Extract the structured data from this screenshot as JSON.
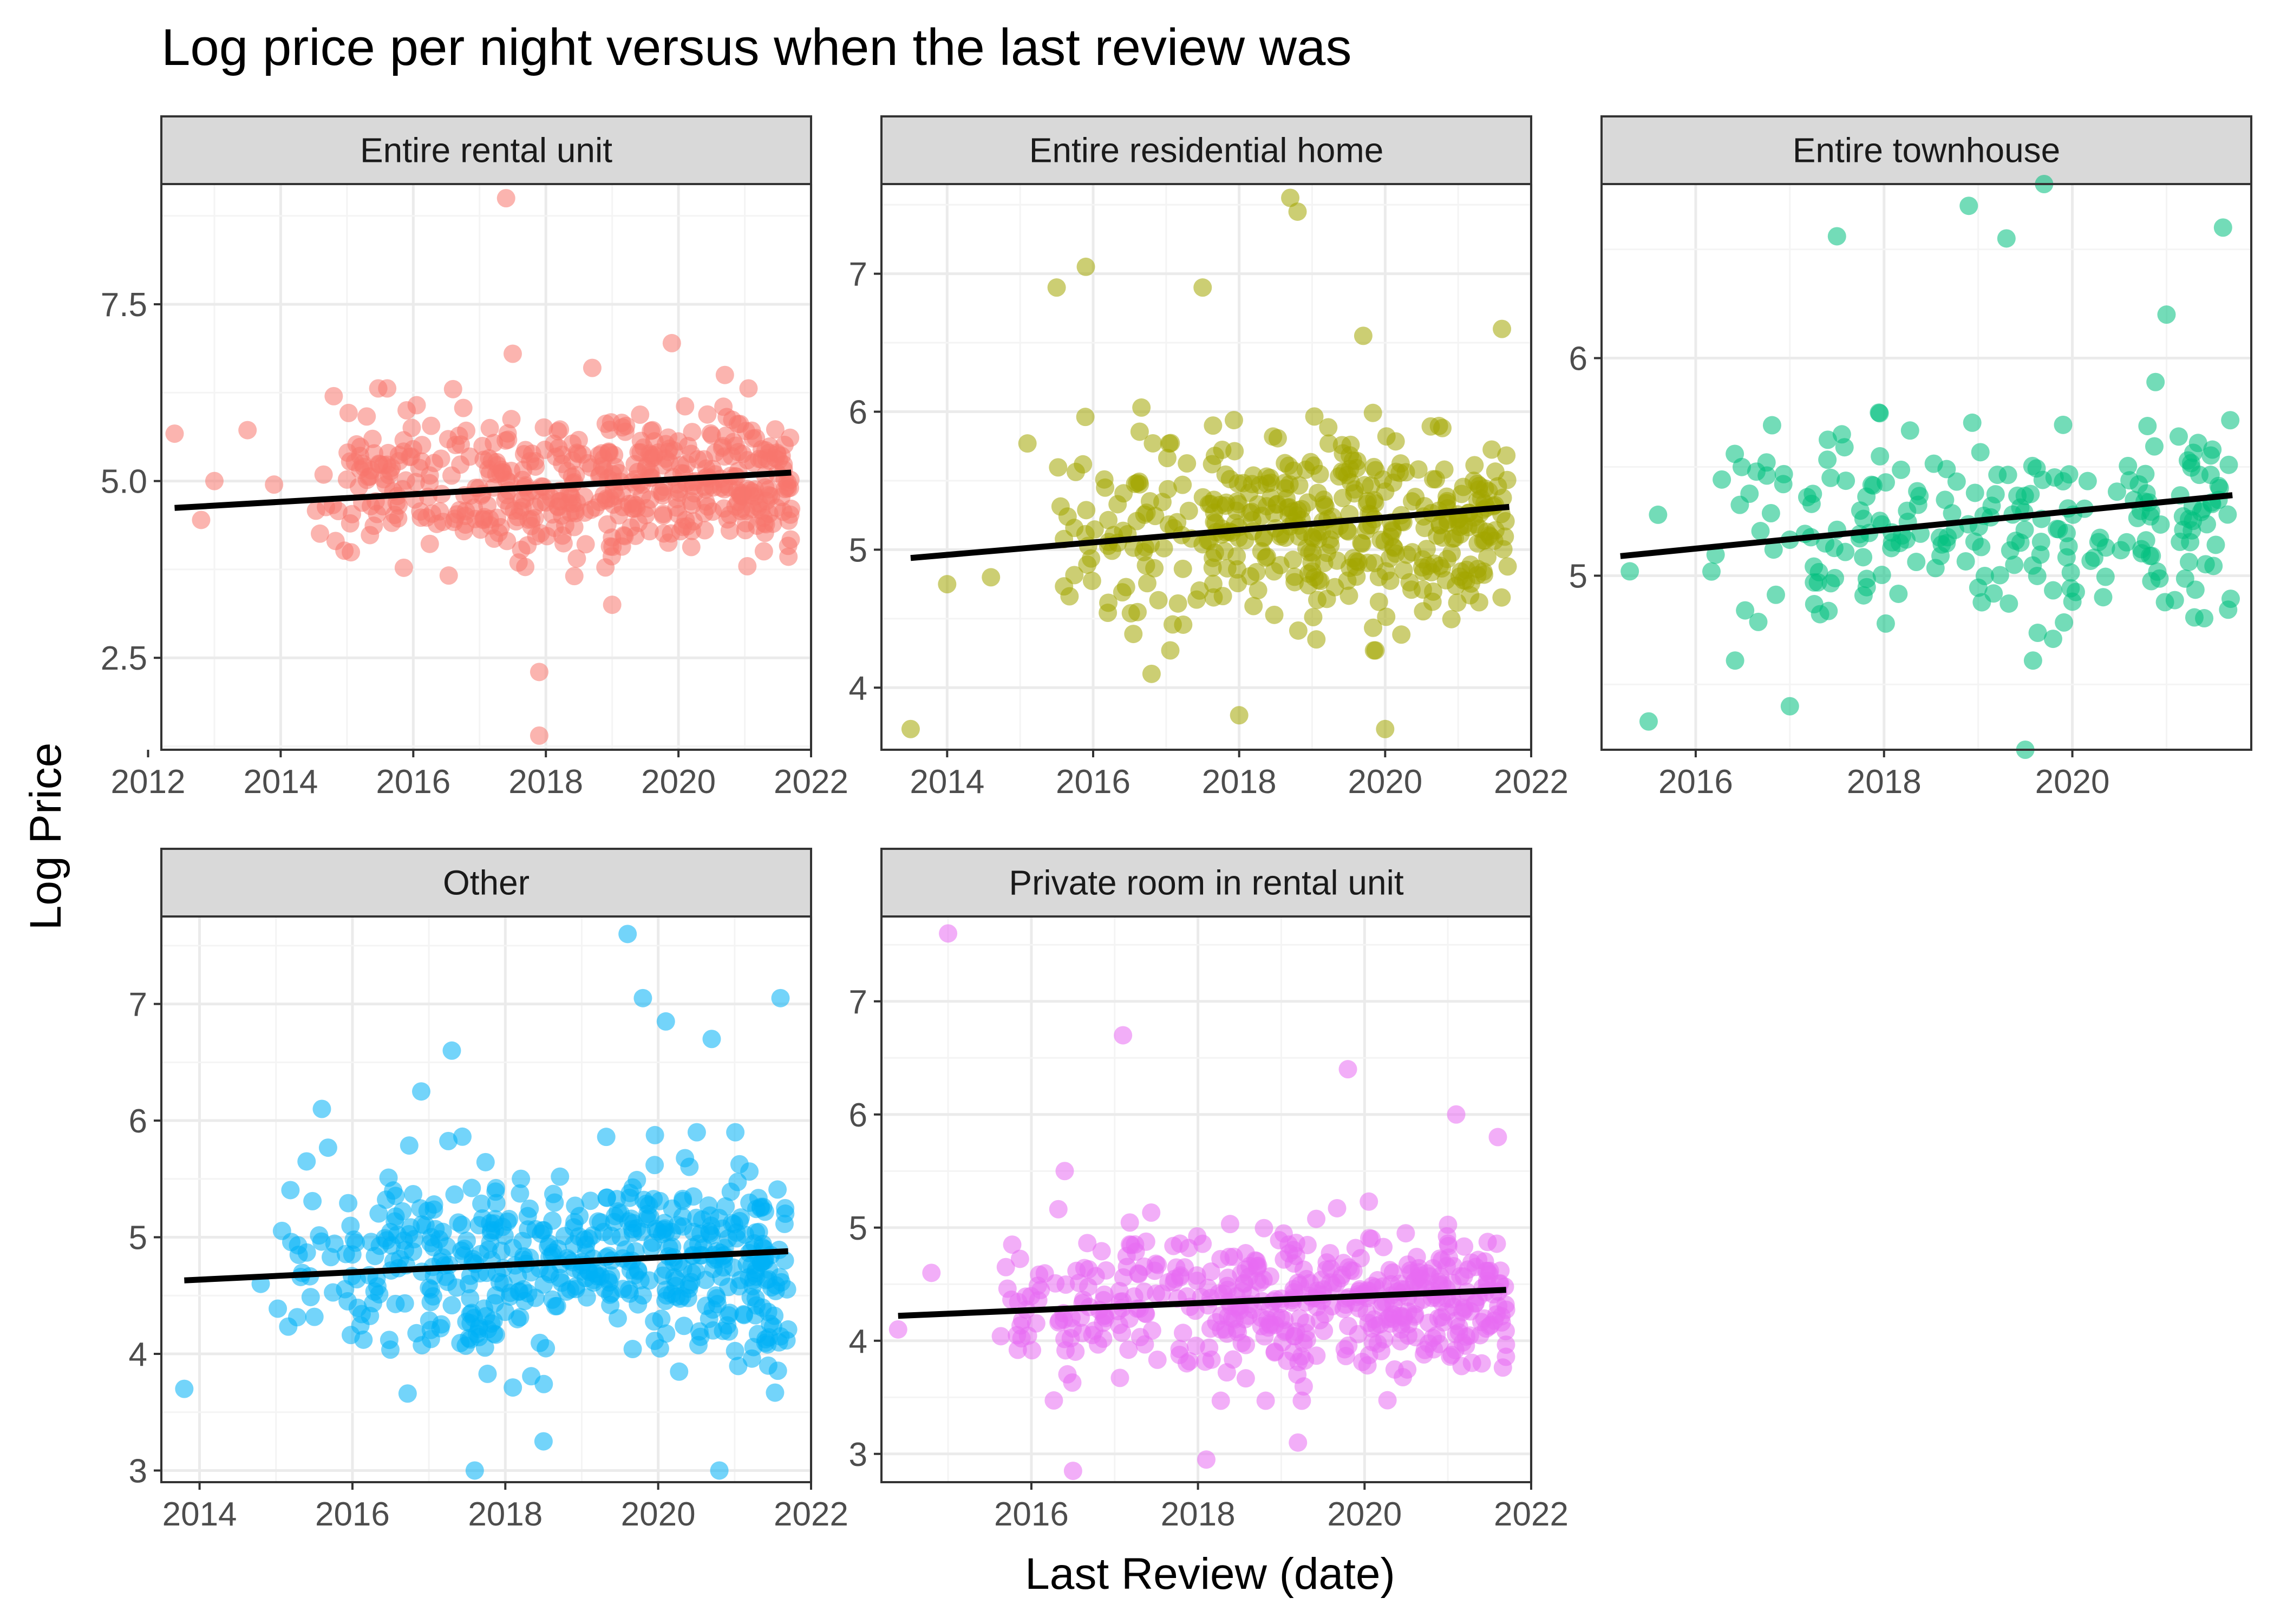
{
  "title": "Log price per night versus when the last review was",
  "xlabel": "Last Review (date)",
  "ylabel": "Log Price",
  "colors": {
    "strip_fill": "#d9d9d9",
    "grid_major": "#ebebeb",
    "grid_minor": "#f4f4f4",
    "panel_border": "#333333",
    "trend_line": "#000000",
    "tick_text": "#4d4d4d"
  },
  "chart_data": [
    {
      "type": "scatter",
      "panel": "Entire rental unit",
      "color": "#F8766D",
      "xlim": [
        2012.2,
        2022.0
      ],
      "ylim": [
        1.2,
        9.2
      ],
      "x_ticks": [
        "2012",
        "2014",
        "2016",
        "2018",
        "2020",
        "2022"
      ],
      "y_ticks": [
        "2.5",
        "5.0",
        "7.5"
      ],
      "trend": [
        [
          2012.4,
          4.62
        ],
        [
          2021.7,
          5.12
        ]
      ],
      "cloud": {
        "x": [
          2014.5,
          2021.7
        ],
        "y_mean": 4.95,
        "y_spread": 0.85,
        "n": 500,
        "seed": 11
      },
      "outliers": [
        [
          2012.4,
          5.67
        ],
        [
          2012.8,
          4.45
        ],
        [
          2013.0,
          5.0
        ],
        [
          2013.5,
          5.72
        ],
        [
          2013.9,
          4.95
        ],
        [
          2014.8,
          6.2
        ],
        [
          2017.4,
          9.0
        ],
        [
          2017.9,
          2.3
        ],
        [
          2017.9,
          1.4
        ],
        [
          2019.0,
          3.25
        ],
        [
          2018.7,
          6.6
        ],
        [
          2019.9,
          6.95
        ],
        [
          2020.7,
          6.5
        ],
        [
          2017.5,
          6.8
        ],
        [
          2015.9,
          6.0
        ],
        [
          2016.6,
          6.3
        ]
      ]
    },
    {
      "type": "scatter",
      "panel": "Entire residential home",
      "color": "#A3A500",
      "xlim": [
        2013.1,
        2022.0
      ],
      "ylim": [
        3.55,
        7.65
      ],
      "x_ticks": [
        "2014",
        "2016",
        "2018",
        "2020",
        "2022"
      ],
      "y_ticks": [
        "4",
        "5",
        "6",
        "7"
      ],
      "trend": [
        [
          2013.5,
          4.94
        ],
        [
          2021.7,
          5.31
        ]
      ],
      "cloud": {
        "x": [
          2015.5,
          2021.7
        ],
        "y_mean": 5.15,
        "y_spread": 0.55,
        "n": 420,
        "seed": 22
      },
      "outliers": [
        [
          2013.5,
          3.7
        ],
        [
          2014.0,
          4.75
        ],
        [
          2014.6,
          4.8
        ],
        [
          2015.1,
          5.77
        ],
        [
          2015.5,
          6.9
        ],
        [
          2015.9,
          7.05
        ],
        [
          2017.5,
          6.9
        ],
        [
          2018.7,
          7.55
        ],
        [
          2018.8,
          7.45
        ],
        [
          2018.0,
          3.8
        ],
        [
          2020.0,
          3.7
        ],
        [
          2021.6,
          6.6
        ],
        [
          2019.7,
          6.55
        ],
        [
          2016.8,
          4.1
        ]
      ]
    },
    {
      "type": "scatter",
      "panel": "Entire townhouse",
      "color": "#00BF7D",
      "xlim": [
        2015.0,
        2021.9
      ],
      "ylim": [
        4.2,
        6.8
      ],
      "x_ticks": [
        "2016",
        "2018",
        "2020"
      ],
      "y_ticks": [
        "5",
        "6"
      ],
      "trend": [
        [
          2015.2,
          5.09
        ],
        [
          2021.7,
          5.37
        ]
      ],
      "cloud": {
        "x": [
          2016.0,
          2021.7
        ],
        "y_mean": 5.25,
        "y_spread": 0.4,
        "n": 230,
        "seed": 33
      },
      "outliers": [
        [
          2015.3,
          5.02
        ],
        [
          2015.5,
          4.33
        ],
        [
          2015.6,
          5.28
        ],
        [
          2017.5,
          6.56
        ],
        [
          2018.9,
          6.7
        ],
        [
          2019.3,
          6.55
        ],
        [
          2019.7,
          6.8
        ],
        [
          2021.6,
          6.6
        ],
        [
          2021.0,
          6.2
        ],
        [
          2019.5,
          4.2
        ],
        [
          2017.0,
          4.4
        ]
      ]
    },
    {
      "type": "scatter",
      "panel": "Other",
      "color": "#00B0F6",
      "xlim": [
        2013.5,
        2022.0
      ],
      "ylim": [
        2.9,
        7.75
      ],
      "x_ticks": [
        "2014",
        "2016",
        "2018",
        "2020",
        "2022"
      ],
      "y_ticks": [
        "3",
        "4",
        "5",
        "6",
        "7"
      ],
      "trend": [
        [
          2013.8,
          4.63
        ],
        [
          2021.7,
          4.88
        ]
      ],
      "cloud": {
        "x": [
          2015.0,
          2021.7
        ],
        "y_mean": 4.78,
        "y_spread": 0.7,
        "n": 520,
        "seed": 44
      },
      "outliers": [
        [
          2013.8,
          3.7
        ],
        [
          2014.8,
          4.6
        ],
        [
          2015.4,
          5.65
        ],
        [
          2015.6,
          6.1
        ],
        [
          2017.3,
          6.6
        ],
        [
          2019.6,
          7.6
        ],
        [
          2019.8,
          7.05
        ],
        [
          2020.1,
          6.85
        ],
        [
          2020.7,
          6.7
        ],
        [
          2021.6,
          7.05
        ],
        [
          2017.6,
          3.0
        ],
        [
          2018.5,
          3.25
        ],
        [
          2020.8,
          3.0
        ],
        [
          2016.9,
          6.25
        ]
      ]
    },
    {
      "type": "scatter",
      "panel": "Private room in rental unit",
      "color": "#E76BF3",
      "xlim": [
        2014.2,
        2022.0
      ],
      "ylim": [
        2.75,
        7.75
      ],
      "x_ticks": [
        "2016",
        "2018",
        "2020",
        "2022"
      ],
      "y_ticks": [
        "3",
        "4",
        "5",
        "6",
        "7"
      ],
      "trend": [
        [
          2014.4,
          4.22
        ],
        [
          2021.7,
          4.45
        ]
      ],
      "cloud": {
        "x": [
          2015.5,
          2021.7
        ],
        "y_mean": 4.35,
        "y_spread": 0.55,
        "n": 480,
        "seed": 55
      },
      "outliers": [
        [
          2014.4,
          4.1
        ],
        [
          2014.8,
          4.6
        ],
        [
          2015.0,
          7.6
        ],
        [
          2017.1,
          6.7
        ],
        [
          2019.8,
          6.4
        ],
        [
          2021.1,
          6.0
        ],
        [
          2016.5,
          2.85
        ],
        [
          2018.1,
          2.95
        ],
        [
          2019.2,
          3.1
        ],
        [
          2021.6,
          5.8
        ],
        [
          2016.4,
          5.5
        ]
      ]
    }
  ]
}
